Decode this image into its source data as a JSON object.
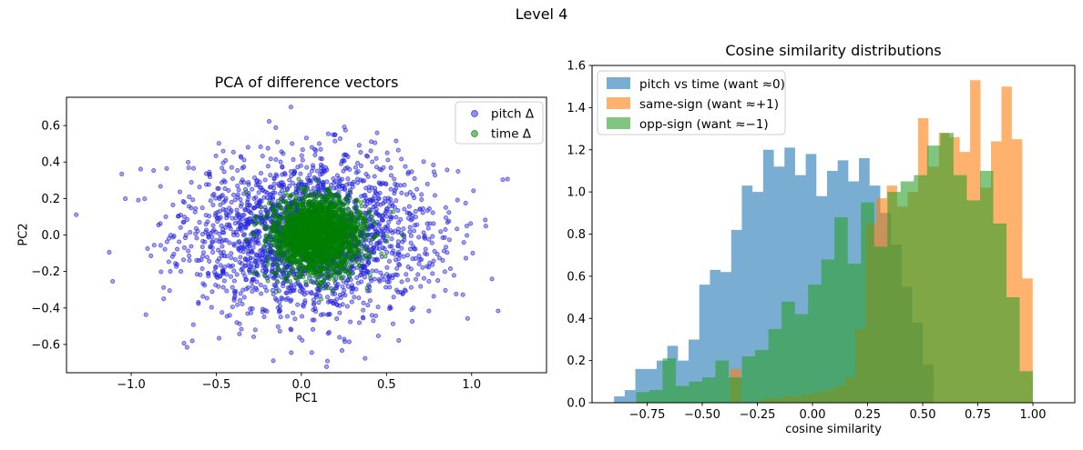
{
  "figure": {
    "suptitle": "Level 4",
    "background": "#ffffff",
    "text_color": "#000000",
    "spine_color": "#000000"
  },
  "chart_data": [
    {
      "type": "scatter",
      "title": "PCA of difference vectors",
      "xlabel": "PC1",
      "ylabel": "PC2",
      "xlim": [
        -1.38,
        1.44
      ],
      "ylim": [
        -0.755,
        0.755
      ],
      "xticks": [
        -1.0,
        -0.5,
        0.0,
        0.5,
        1.0
      ],
      "xticklabels": [
        "−1.0",
        "−0.5",
        "0.0",
        "0.5",
        "1.0"
      ],
      "yticks": [
        -0.6,
        -0.4,
        -0.2,
        0.0,
        0.2,
        0.4,
        0.6
      ],
      "yticklabels": [
        "−0.6",
        "−0.4",
        "−0.2",
        "0.0",
        "0.2",
        "0.4",
        "0.6"
      ],
      "grid": false,
      "legend": {
        "position": "upper right",
        "items": [
          {
            "label": "pitch Δ",
            "color": "#2222dd",
            "slug": "pitch-delta"
          },
          {
            "label": "time Δ",
            "color": "#007f00",
            "slug": "time-delta"
          }
        ]
      },
      "series": [
        {
          "name": "pitch Δ",
          "slug": "pitch-delta",
          "color": "#2222dd",
          "alpha": 0.4,
          "marker_radius": 2.1,
          "n": 2200,
          "center": [
            0.05,
            0.0
          ],
          "std": [
            0.37,
            0.215
          ],
          "seed": 1234
        },
        {
          "name": "time Δ",
          "slug": "time-delta",
          "color": "#007f00",
          "alpha": 0.4,
          "marker_radius": 2.0,
          "n": 2200,
          "center": [
            0.09,
            0.0
          ],
          "std": [
            0.13,
            0.1
          ],
          "seed": 99
        }
      ]
    },
    {
      "type": "histogram",
      "title": "Cosine similarity distributions",
      "xlabel": "cosine similarity",
      "ylabel": "",
      "xlim": [
        -1.0,
        1.19
      ],
      "ylim": [
        0,
        1.6
      ],
      "xticks": [
        -0.75,
        -0.5,
        -0.25,
        0.0,
        0.25,
        0.5,
        0.75,
        1.0
      ],
      "xticklabels": [
        "−0.75",
        "−0.50",
        "−0.25",
        "0.00",
        "0.25",
        "0.50",
        "0.75",
        "1.00"
      ],
      "yticks": [
        0.0,
        0.2,
        0.4,
        0.6,
        0.8,
        1.0,
        1.2,
        1.4,
        1.6
      ],
      "yticklabels": [
        "0.0",
        "0.2",
        "0.4",
        "0.6",
        "0.8",
        "1.0",
        "1.2",
        "1.4",
        "1.6"
      ],
      "grid": false,
      "legend": {
        "position": "upper left",
        "items": [
          {
            "label": "pitch vs time (want ≈0)",
            "color": "#1f77b4",
            "slug": "pitch-vs-time"
          },
          {
            "label": "same-sign (want ≈+1)",
            "color": "#ff7f0e",
            "slug": "same-sign"
          },
          {
            "label": "opp-sign (want ≈−1)",
            "color": "#2ca02c",
            "slug": "opp-sign"
          }
        ]
      },
      "series": [
        {
          "name": "pitch vs time (want ≈0)",
          "slug": "pitch-vs-time",
          "color": "#1f77b4",
          "alpha": 0.6,
          "bin_start": -0.9,
          "bin_width": 0.0483,
          "heights": [
            0.03,
            0.06,
            0.16,
            0.16,
            0.2,
            0.27,
            0.2,
            0.3,
            0.56,
            0.63,
            0.62,
            0.82,
            1.03,
            1.0,
            1.2,
            1.12,
            1.21,
            1.08,
            1.18,
            0.98,
            1.1,
            1.15,
            1.05,
            1.16,
            1.03,
            0.9,
            0.75,
            0.55,
            0.38,
            0.18
          ]
        },
        {
          "name": "same-sign (want ≈+1)",
          "slug": "same-sign",
          "color": "#ff7f0e",
          "alpha": 0.6,
          "bin_start": -0.42,
          "bin_width": 0.0473,
          "heights": [
            0.0,
            0.16,
            0.0,
            0.0,
            0.02,
            0.02,
            0.03,
            0.03,
            0.04,
            0.05,
            0.06,
            0.08,
            0.12,
            0.35,
            0.85,
            0.97,
            1.03,
            0.93,
            1.0,
            1.35,
            1.12,
            1.28,
            1.26,
            1.19,
            1.53,
            1.02,
            1.24,
            1.5,
            1.25,
            0.59
          ]
        },
        {
          "name": "opp-sign (want ≈−1)",
          "slug": "opp-sign",
          "color": "#2ca02c",
          "alpha": 0.6,
          "bin_start": -0.8,
          "bin_width": 0.06,
          "heights": [
            0.05,
            0.06,
            0.21,
            0.08,
            0.1,
            0.12,
            0.2,
            0.12,
            0.22,
            0.25,
            0.35,
            0.48,
            0.42,
            0.56,
            0.68,
            0.88,
            0.66,
            0.95,
            0.74,
            1.0,
            1.05,
            1.08,
            1.22,
            1.28,
            1.08,
            0.96,
            1.1,
            0.85,
            0.5,
            0.15
          ]
        }
      ]
    }
  ]
}
